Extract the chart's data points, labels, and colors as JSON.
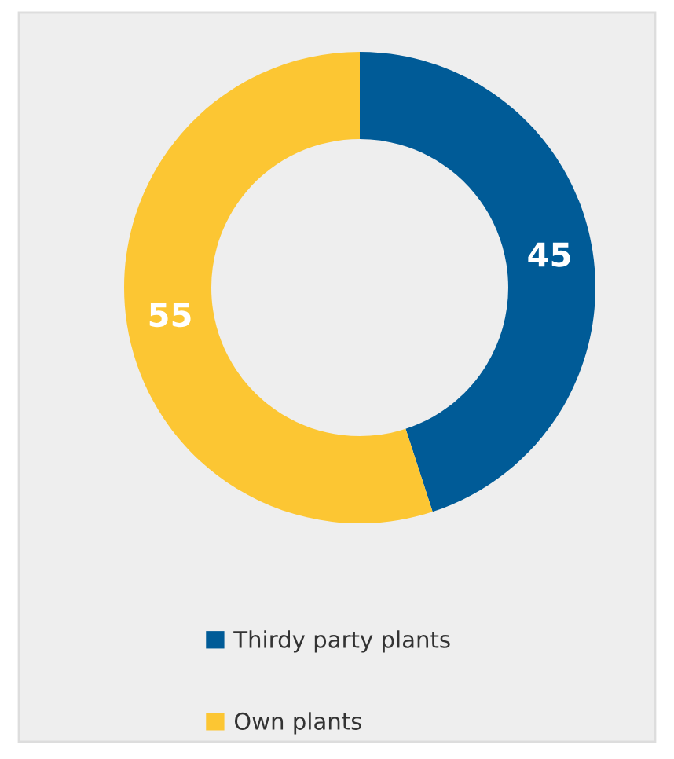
{
  "chart_data": {
    "type": "donut",
    "categories": [
      "Thirdy party plants",
      "Own plants"
    ],
    "values": [
      45,
      55
    ],
    "colors": [
      "#005b97",
      "#fcc633"
    ],
    "data_labels": true,
    "legend": "bottom"
  }
}
